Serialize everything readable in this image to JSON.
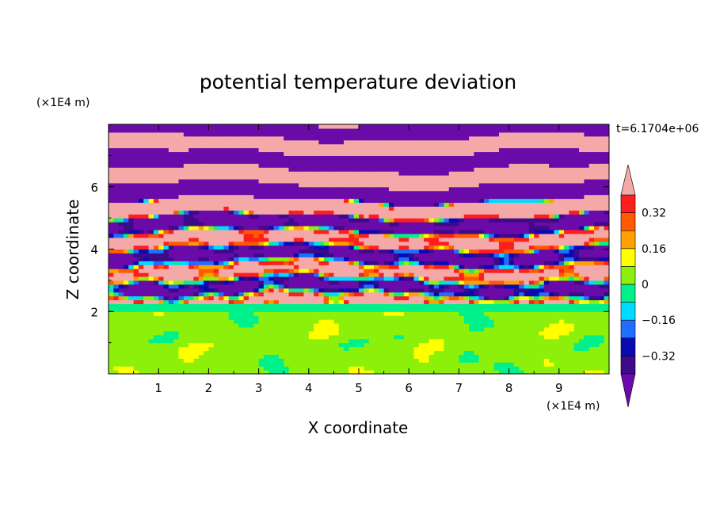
{
  "chart_data": {
    "type": "heatmap",
    "title": "potential temperature deviation",
    "xlabel": "X coordinate",
    "ylabel": "Z coordinate",
    "x_unit": "(×1E4 m)",
    "y_unit": "(×1E4 m)",
    "time_label": "t=6.1704e+06",
    "xlim": [
      0,
      10
    ],
    "ylim": [
      0,
      8
    ],
    "x_ticks": [
      "1",
      "2",
      "3",
      "4",
      "5",
      "6",
      "7",
      "8",
      "9"
    ],
    "y_ticks": [
      "2",
      "4",
      "6"
    ],
    "colorbar": {
      "levels": [
        -0.4,
        -0.32,
        -0.24,
        -0.16,
        -0.08,
        0,
        0.08,
        0.16,
        0.24,
        0.32,
        0.4
      ],
      "labels": [
        "0.32",
        "0.16",
        "0",
        "−0.16",
        "−0.32"
      ],
      "colors": [
        "#3d0a8a",
        "#0a0ab4",
        "#1e6eff",
        "#00dcff",
        "#00f08c",
        "#8cf00a",
        "#ffff00",
        "#ffa000",
        "#ff5a00",
        "#ff1e1e"
      ],
      "under_color": "#6a0aa8",
      "over_color": "#f4a8a8"
    },
    "regions": {
      "lower_layer_z": [
        0,
        2.0
      ],
      "lower_layer_values": [
        0.0,
        0.06
      ],
      "transition_z": [
        2.0,
        5.6
      ],
      "upper_layer_z": [
        5.6,
        8.0
      ],
      "upper_layer_values": [
        -0.45,
        0.45
      ]
    }
  }
}
